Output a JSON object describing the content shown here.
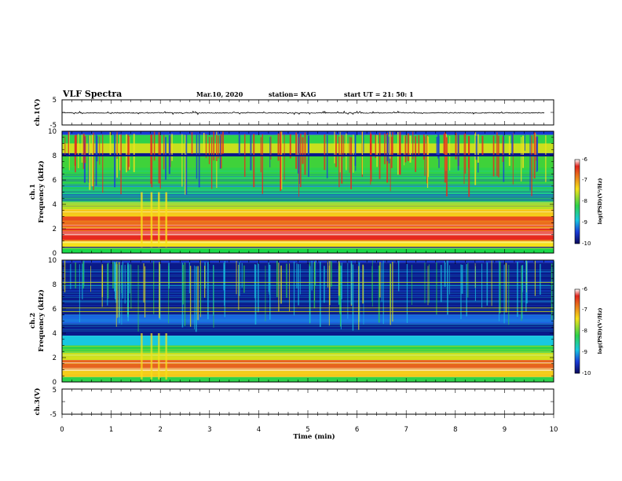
{
  "header": {
    "title": "VLF Spectra",
    "date": "Mar.10, 2020",
    "station": "station= KAG",
    "start": "start  UT  =   21: 50: 1"
  },
  "chart_data": [
    {
      "type": "line",
      "panel": "ch1-waveform",
      "ylabel": "ch.1(V)",
      "ylim": [
        -5,
        5
      ],
      "yticks": [
        "5",
        "-5"
      ],
      "xlim": [
        0,
        10
      ],
      "series": [
        {
          "values_note_level": -0.2
        }
      ]
    },
    {
      "type": "heatmap",
      "panel": "ch1-spectrogram",
      "ylabel": "ch.1\nFrequency  (kHz)",
      "ylabel_line1": "ch.1",
      "ylabel_line2": "Frequency  (kHz)",
      "ylim": [
        0,
        10
      ],
      "yticks": [
        "0",
        "2",
        "4",
        "6",
        "8",
        "10"
      ],
      "xlim": [
        0,
        10
      ],
      "colorbar": {
        "label": "log(PSD)(V²/Hz)",
        "range": [
          -10,
          -6
        ],
        "ticks": [
          "-6",
          "-7",
          "-8",
          "-9",
          "-10"
        ]
      }
    },
    {
      "type": "heatmap",
      "panel": "ch2-spectrogram",
      "ylabel_line1": "ch.2",
      "ylabel_line2": "Frequency  (kHz)",
      "ylim": [
        0,
        10
      ],
      "yticks": [
        "0",
        "2",
        "4",
        "6",
        "8",
        "10"
      ],
      "xlim": [
        0,
        10
      ],
      "colorbar": {
        "label": "log(PSD)(V²/Hz)",
        "range": [
          -10,
          -6
        ],
        "ticks": [
          "-6",
          "-7",
          "-8",
          "-9",
          "-10"
        ]
      }
    },
    {
      "type": "line",
      "panel": "ch3-waveform",
      "ylabel": "ch.3(V)",
      "ylim": [
        -5,
        5
      ],
      "yticks": [
        "5",
        "-5"
      ],
      "xlim": [
        0,
        10
      ]
    }
  ],
  "xaxis": {
    "label": "Time  (min)",
    "ticks": [
      "0",
      "1",
      "2",
      "3",
      "4",
      "5",
      "6",
      "7",
      "8",
      "9",
      "10"
    ]
  },
  "colors": {
    "blue": "#0a1a8a",
    "green": "#2ed24a",
    "yellow": "#f5e11a",
    "red": "#e62a1e"
  }
}
